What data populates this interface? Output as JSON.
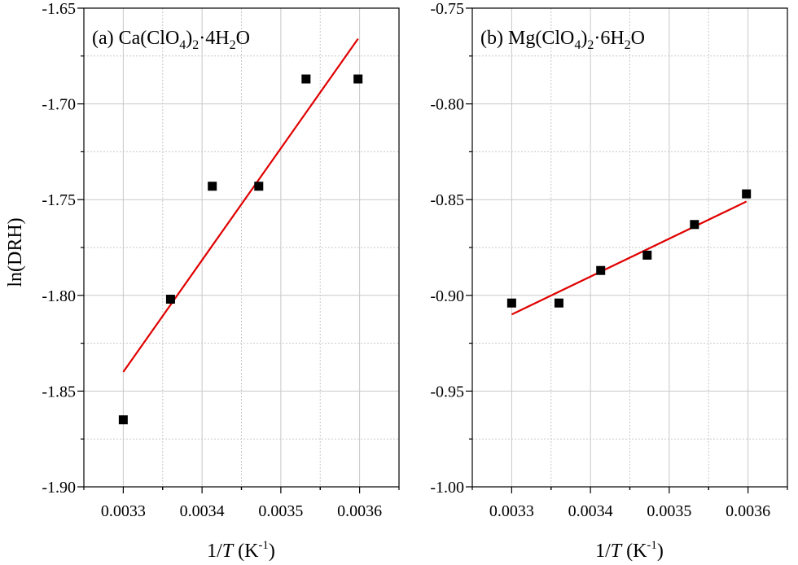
{
  "figure": {
    "ylabel": "ln(DRH)",
    "xlabel_parts": [
      "1/",
      "T",
      " (K",
      "-1",
      ")"
    ],
    "colors": {
      "marker": "#000000",
      "fit_line": "#e00000",
      "grid": "#c8c8c8",
      "axes": "#000000"
    }
  },
  "chart_data": [
    {
      "type": "scatter",
      "panel_label_parts": {
        "prefix": "(a) Ca(ClO",
        "sub1": "4",
        "close": ")",
        "sub2": "2",
        "dot": "·4H",
        "sub3": "2",
        "tail": "O"
      },
      "xlabel": "1/T (K-1)",
      "ylabel": "ln(DRH)",
      "xlim": [
        0.00325,
        0.00365
      ],
      "ylim": [
        -1.9,
        -1.65
      ],
      "xticks": [
        "0.0033",
        "0.0034",
        "0.0035",
        "0.0036"
      ],
      "xtick_values": [
        0.0033,
        0.0034,
        0.0035,
        0.0036
      ],
      "yticks": [
        "-1.65",
        "-1.70",
        "-1.75",
        "-1.80",
        "-1.85",
        "-1.90"
      ],
      "ytick_values": [
        -1.65,
        -1.7,
        -1.75,
        -1.8,
        -1.85,
        -1.9
      ],
      "grid": true,
      "series": [
        {
          "marker": "square",
          "points": [
            {
              "x": 0.0033,
              "y": -1.865
            },
            {
              "x": 0.00336,
              "y": -1.802
            },
            {
              "x": 0.003413,
              "y": -1.743
            },
            {
              "x": 0.003472,
              "y": -1.743
            },
            {
              "x": 0.003532,
              "y": -1.687
            },
            {
              "x": 0.003598,
              "y": -1.687
            }
          ]
        }
      ],
      "fit_line": {
        "x": [
          0.0033,
          0.003598
        ],
        "y": [
          -1.84,
          -1.666
        ]
      }
    },
    {
      "type": "scatter",
      "panel_label_parts": {
        "prefix": "(b) Mg(ClO",
        "sub1": "4",
        "close": ")",
        "sub2": "2",
        "dot": "·6H",
        "sub3": "2",
        "tail": "O"
      },
      "xlabel": "1/T (K-1)",
      "ylabel": "",
      "xlim": [
        0.00325,
        0.00365
      ],
      "ylim": [
        -1.0,
        -0.75
      ],
      "xticks": [
        "0.0033",
        "0.0034",
        "0.0035",
        "0.0036"
      ],
      "xtick_values": [
        0.0033,
        0.0034,
        0.0035,
        0.0036
      ],
      "yticks": [
        "-0.75",
        "-0.80",
        "-0.85",
        "-0.90",
        "-0.95",
        "-1.00"
      ],
      "ytick_values": [
        -0.75,
        -0.8,
        -0.85,
        -0.9,
        -0.95,
        -1.0
      ],
      "grid": true,
      "series": [
        {
          "marker": "square",
          "points": [
            {
              "x": 0.0033,
              "y": -0.904
            },
            {
              "x": 0.00336,
              "y": -0.904
            },
            {
              "x": 0.003413,
              "y": -0.887
            },
            {
              "x": 0.003472,
              "y": -0.879
            },
            {
              "x": 0.003532,
              "y": -0.863
            },
            {
              "x": 0.003598,
              "y": -0.847
            }
          ]
        }
      ],
      "fit_line": {
        "x": [
          0.0033,
          0.003598
        ],
        "y": [
          -0.91,
          -0.851
        ]
      }
    }
  ]
}
